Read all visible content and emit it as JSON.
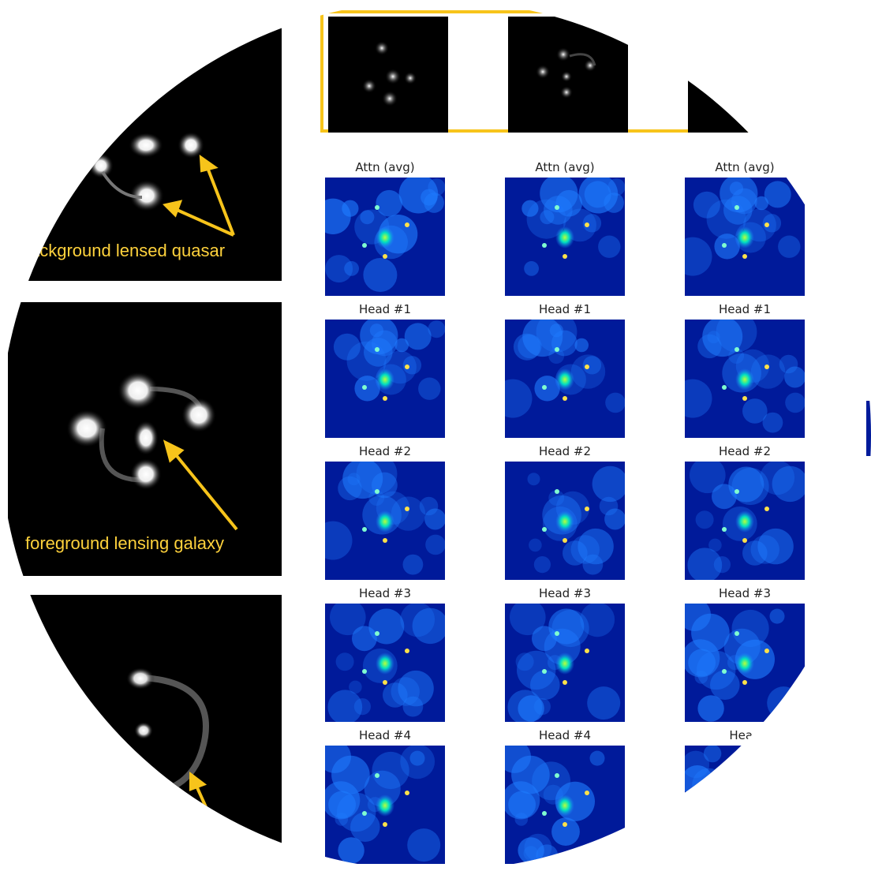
{
  "annotations": {
    "quasar": "ackground lensed quasar",
    "galaxy": "foreground lensing galaxy"
  },
  "columns": [
    {
      "titles": [
        "Attn (avg)",
        "Head #1",
        "Head #2",
        "Head #3",
        "Head #4"
      ]
    },
    {
      "titles": [
        "Attn (avg)",
        "Head #1",
        "Head #2",
        "Head #3",
        "Head #4"
      ]
    },
    {
      "titles": [
        "Attn (avg)",
        "Head #1",
        "Head #2",
        "Head #3",
        "Head"
      ]
    }
  ],
  "colors": {
    "highlight": "#f7c41b",
    "annotation": "#ffd23c",
    "heatmap_low": "#001a9a",
    "heatmap_high": "#00ffd0"
  },
  "icons": [
    "arrow-icon"
  ]
}
